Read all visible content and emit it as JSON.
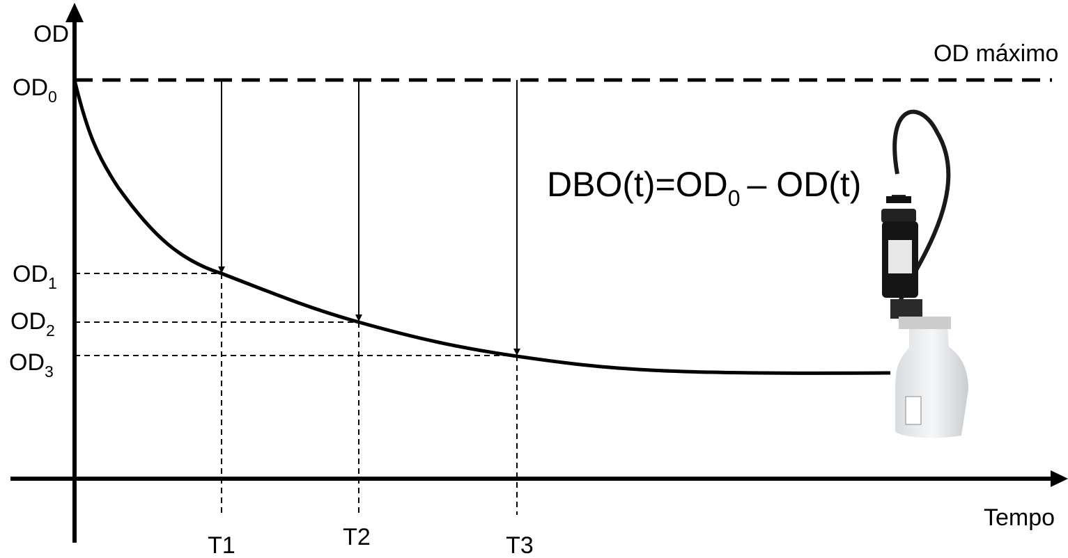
{
  "axis": {
    "y_label": "OD",
    "x_label": "Tempo"
  },
  "reference": {
    "label": "OD máximo",
    "level": {
      "base": "OD",
      "sub": "0"
    }
  },
  "levels": [
    {
      "base": "OD",
      "sub": "1"
    },
    {
      "base": "OD",
      "sub": "2"
    },
    {
      "base": "OD",
      "sub": "3"
    }
  ],
  "times": [
    "T1",
    "T2",
    "T3"
  ],
  "formula": {
    "lhs": "DBO(t)=OD",
    "sub": "0",
    "rhs": "– OD(t)"
  }
}
